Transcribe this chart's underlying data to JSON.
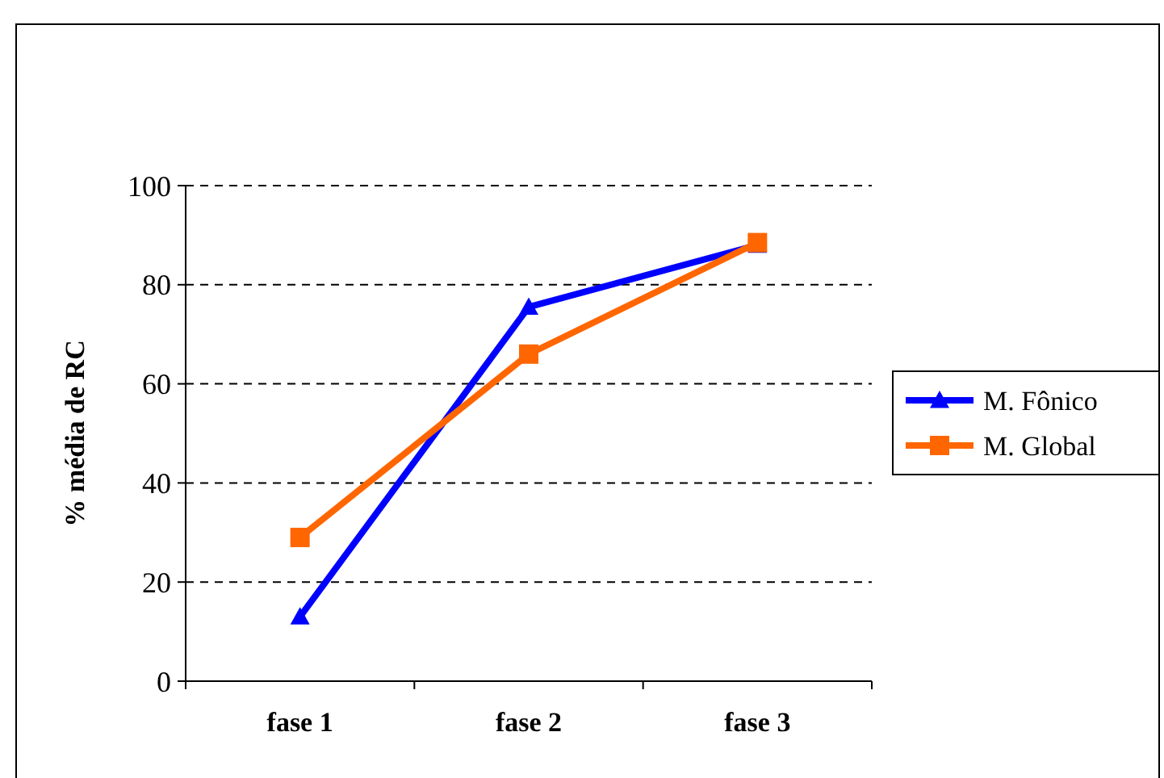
{
  "chart_data": {
    "type": "line",
    "ylabel": "% média de RC",
    "categories": [
      "fase 1",
      "fase 2",
      "fase 3"
    ],
    "series": [
      {
        "name": "M. Fônico",
        "color": "#0000ff",
        "marker": "triangle",
        "values": [
          13,
          75.5,
          88
        ]
      },
      {
        "name": "M. Global",
        "color": "#ff6600",
        "marker": "square",
        "values": [
          29,
          66,
          88.5
        ]
      }
    ],
    "ylim": [
      0,
      100
    ],
    "yticks": [
      0,
      20,
      40,
      60,
      80,
      100
    ],
    "grid": "y",
    "legend": "right",
    "line_style": "solid"
  }
}
